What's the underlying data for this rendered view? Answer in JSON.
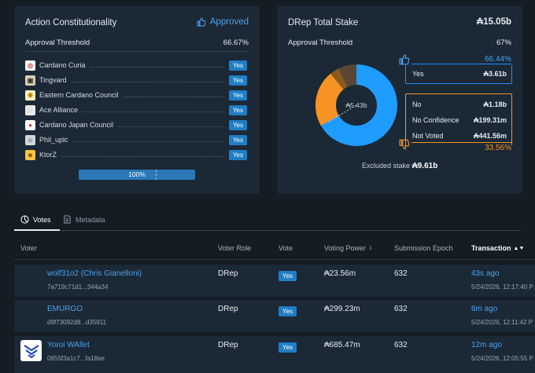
{
  "cc_card": {
    "title": "Action Constitutionality",
    "status": "Approved",
    "threshold_label": "Approval Threshold",
    "threshold_value": "66.67%",
    "members": [
      {
        "name": "Cardano Curia",
        "vote": "Yes"
      },
      {
        "name": "Tingvard",
        "vote": "Yes"
      },
      {
        "name": "Eastern Cardano Council",
        "vote": "Yes"
      },
      {
        "name": "Ace Alliance",
        "vote": "Yes"
      },
      {
        "name": "Cardano Japan Council",
        "vote": "Yes"
      },
      {
        "name": "Phil_uplc",
        "vote": "Yes"
      },
      {
        "name": "KtorZ",
        "vote": "Yes"
      }
    ],
    "progress_label": "100%",
    "progress_fraction": 1.0
  },
  "drep_card": {
    "title": "DRep Total Stake",
    "total": "₳15.05b",
    "threshold_label": "Approval Threshold",
    "threshold_value": "67%",
    "center_value": "₳5.43b",
    "yes_pct": "66.44%",
    "yes_label": "Yes",
    "yes_value": "₳3.61b",
    "no_label": "No",
    "no_value": "₳1.18b",
    "noconf_label": "No Confidence",
    "noconf_value": "₳199.31m",
    "notvoted_label": "Not Voted",
    "notvoted_value": "₳441.56m",
    "no_pct": "33.56%",
    "excluded_label": "Excluded stake",
    "excluded_value": "₳9.61b",
    "colors": {
      "yes": "#1e9cff",
      "no": "#f79322",
      "no_confidence": "#8a5a1e",
      "not_voted": "#5a4632"
    }
  },
  "tabs": {
    "votes": "Votes",
    "metadata": "Metadata"
  },
  "table": {
    "headers": {
      "voter": "Voter",
      "role": "Voter Role",
      "vote": "Vote",
      "power": "Voting Power",
      "epoch": "Submission Epoch",
      "tx": "Transaction"
    },
    "rows": [
      {
        "name": "wolf31o2 (Chris Gianelloni)",
        "id": "7a719c71d1...344a34",
        "role": "DRep",
        "vote": "Yes",
        "power": "₳23.56m",
        "epoch": "632",
        "ago": "43s ago",
        "date": "5/24/2026, 12:17:40 P"
      },
      {
        "name": "EMURGO",
        "id": "d9f73092d8...d35911",
        "role": "DRep",
        "vote": "Yes",
        "power": "₳299.23m",
        "epoch": "632",
        "ago": "6m ago",
        "date": "5/24/2026, 12:11:42 P"
      },
      {
        "name": "Yoroi WAllet",
        "id": "0655f3a1c7...fa18ae",
        "role": "DRep",
        "vote": "Yes",
        "power": "₳685.47m",
        "epoch": "632",
        "ago": "12m ago",
        "date": "5/24/2026, 12:05:55 P"
      }
    ]
  }
}
